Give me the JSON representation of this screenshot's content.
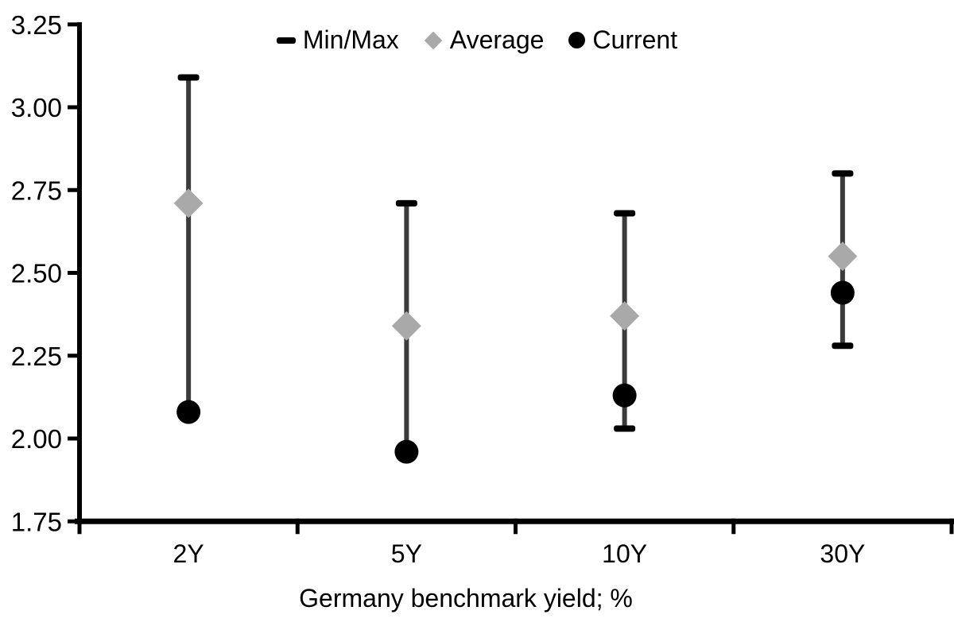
{
  "chart_data": {
    "type": "scatter",
    "title": "",
    "xlabel": "Germany benchmark yield; %",
    "ylabel": "",
    "categories": [
      "2Y",
      "5Y",
      "10Y",
      "30Y"
    ],
    "ylim": [
      1.75,
      3.25
    ],
    "ytick_values": [
      3.25,
      3.0,
      2.75,
      2.5,
      2.25,
      2.0,
      1.75
    ],
    "ytick_labels": [
      "3.25",
      "3.00",
      "2.75",
      "2.50",
      "2.25",
      "2.00",
      "1.75"
    ],
    "grid": false,
    "legend_position": "top-center",
    "legend": [
      {
        "label": "Min/Max",
        "marker": "dash",
        "color": "#000000"
      },
      {
        "label": "Average",
        "marker": "diamond",
        "color": "#a9a9a9"
      },
      {
        "label": "Current",
        "marker": "circle",
        "color": "#000000"
      }
    ],
    "series": [
      {
        "name": "Min/Max",
        "type": "range",
        "min": [
          2.08,
          1.96,
          2.03,
          2.28
        ],
        "max": [
          3.09,
          2.71,
          2.68,
          2.8
        ],
        "line_color": "#3b3b3b",
        "cap_color": "#000000"
      },
      {
        "name": "Average",
        "type": "diamond",
        "values": [
          2.71,
          2.34,
          2.37,
          2.55
        ],
        "color": "#a9a9a9"
      },
      {
        "name": "Current",
        "type": "circle",
        "values": [
          2.08,
          1.96,
          2.13,
          2.44
        ],
        "color": "#000000"
      }
    ],
    "axis_color": "#000000",
    "text_color": "#000000"
  }
}
